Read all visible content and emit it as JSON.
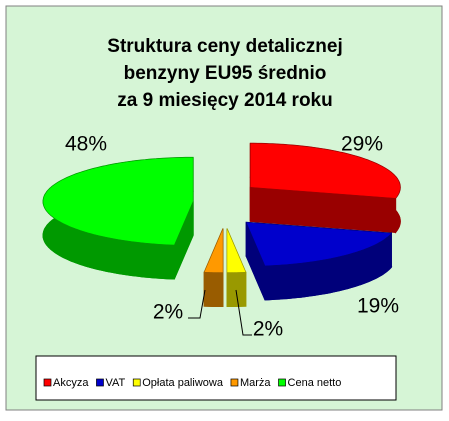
{
  "chart_data": {
    "type": "pie",
    "title": [
      "Struktura ceny detalicznej",
      "benzyny EU95 średnio",
      "za 9 miesięcy 2014 roku"
    ],
    "categories": [
      "Akcyza",
      "VAT",
      "Opłata paliwowa",
      "Marża",
      "Cena netto"
    ],
    "values": [
      29,
      19,
      2,
      2,
      48
    ],
    "value_labels": [
      "29%",
      "19%",
      "2%",
      "2%",
      "48%"
    ],
    "colors": [
      "#ff0000",
      "#0000cc",
      "#ffff00",
      "#ff9900",
      "#00ff00"
    ],
    "legend": "bottom"
  }
}
